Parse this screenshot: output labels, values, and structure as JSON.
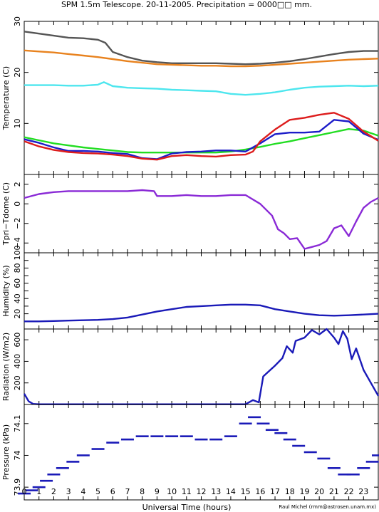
{
  "title": "SPM 1.5m Telescope. 20-11-2005. Precipitation = 0000□□ mm.",
  "xlabel": "Universal Time (hours)",
  "credit": "Raul Michel (rmm@astrosen.unam.mx)",
  "x_ticks": [
    "0",
    "1",
    "2",
    "3",
    "4",
    "5",
    "6",
    "7",
    "8",
    "9",
    "10",
    "11",
    "12",
    "13",
    "14",
    "15",
    "16",
    "17",
    "18",
    "19",
    "20",
    "21",
    "22",
    "23"
  ],
  "chart_data": [
    {
      "type": "line",
      "ylabel": "Temperature (C)",
      "xlim": [
        0,
        24
      ],
      "ylim": [
        0,
        30
      ],
      "yticks": [
        10,
        20,
        30
      ],
      "series": [
        {
          "color": "#555555",
          "x": [
            0,
            1,
            2,
            3,
            4,
            5,
            5.5,
            6,
            7,
            8,
            9,
            10,
            11,
            12,
            13,
            14,
            15,
            16,
            17,
            18,
            19,
            20,
            21,
            22,
            23,
            24
          ],
          "y": [
            28,
            27.6,
            27.2,
            26.8,
            26.7,
            26.4,
            25.8,
            24,
            23,
            22.3,
            22,
            21.8,
            21.8,
            21.8,
            21.8,
            21.7,
            21.6,
            21.7,
            21.9,
            22.2,
            22.6,
            23.1,
            23.6,
            24,
            24.2,
            24.2
          ]
        },
        {
          "color": "#e8821e",
          "x": [
            0,
            1,
            2,
            3,
            4,
            5,
            6,
            7,
            8,
            9,
            10,
            11,
            12,
            13,
            14,
            15,
            16,
            17,
            18,
            19,
            20,
            21,
            22,
            23,
            24
          ],
          "y": [
            24.3,
            24.1,
            23.9,
            23.6,
            23.3,
            23,
            22.6,
            22.2,
            21.9,
            21.6,
            21.5,
            21.4,
            21.3,
            21.3,
            21.2,
            21.2,
            21.3,
            21.5,
            21.7,
            21.9,
            22.1,
            22.3,
            22.5,
            22.6,
            22.7
          ]
        },
        {
          "color": "#4de6ee",
          "x": [
            0,
            1,
            2,
            3,
            4,
            5,
            5.4,
            6,
            7,
            8,
            9,
            10,
            11,
            12,
            13,
            14,
            15,
            16,
            17,
            18,
            19,
            20,
            21,
            22,
            23,
            24
          ],
          "y": [
            17.5,
            17.5,
            17.5,
            17.4,
            17.4,
            17.6,
            18.1,
            17.3,
            17,
            16.9,
            16.8,
            16.6,
            16.5,
            16.4,
            16.3,
            15.8,
            15.6,
            15.8,
            16.1,
            16.6,
            17,
            17.2,
            17.3,
            17.4,
            17.3,
            17.4
          ]
        },
        {
          "color": "#22dd22",
          "x": [
            0,
            1,
            2,
            3,
            4,
            5,
            6,
            7,
            8,
            9,
            10,
            11,
            12,
            13,
            14,
            15,
            16,
            17,
            18,
            19,
            20,
            21,
            22,
            23,
            24
          ],
          "y": [
            7.3,
            6.7,
            6.1,
            5.7,
            5.3,
            5,
            4.7,
            4.4,
            4.3,
            4.3,
            4.3,
            4.3,
            4.3,
            4.3,
            4.5,
            4.9,
            5.4,
            6,
            6.5,
            7.1,
            7.7,
            8.3,
            8.9,
            8.6,
            7.6
          ]
        },
        {
          "color": "#1c1cc9",
          "x": [
            0,
            1,
            2,
            3,
            4,
            5,
            6,
            7,
            8,
            9,
            10,
            11,
            12,
            13,
            14,
            15,
            16,
            17,
            18,
            19,
            20,
            21,
            22,
            23,
            24
          ],
          "y": [
            6.9,
            6.2,
            5.3,
            4.6,
            4.6,
            4.5,
            4.2,
            4,
            3.2,
            3,
            4.1,
            4.4,
            4.5,
            4.7,
            4.7,
            4.5,
            6.1,
            7.9,
            8.2,
            8.2,
            8.4,
            10.7,
            10.4,
            8,
            6.8
          ]
        },
        {
          "color": "#dd1c1c",
          "x": [
            0,
            1,
            2,
            3,
            4,
            5,
            6,
            7,
            8,
            9,
            10,
            11,
            12,
            13,
            14,
            15,
            15.5,
            16,
            17,
            18,
            19,
            20,
            21,
            22,
            23,
            24
          ],
          "y": [
            6.5,
            5.5,
            4.8,
            4.4,
            4.2,
            4.1,
            3.9,
            3.6,
            3.1,
            2.9,
            3.6,
            3.8,
            3.6,
            3.5,
            3.8,
            3.9,
            4.5,
            6.5,
            8.8,
            10.7,
            11.1,
            11.7,
            12.1,
            10.9,
            8.4,
            6.6
          ]
        }
      ]
    },
    {
      "type": "line",
      "ylabel": "Tpri−Tdome (C)",
      "xlim": [
        0,
        24
      ],
      "ylim": [
        -5,
        3
      ],
      "yticks": [
        -4,
        -2,
        0,
        2
      ],
      "tick_labels": [
        "−4",
        "−2",
        "0",
        "2"
      ],
      "series": [
        {
          "color": "#8a2ad6",
          "x": [
            0,
            1,
            2,
            3,
            4,
            5,
            6,
            7,
            8,
            8.8,
            9,
            10,
            11,
            12,
            13,
            14,
            15,
            16,
            16.8,
            17.2,
            17.6,
            18,
            18.5,
            19,
            19.5,
            20,
            20.5,
            21,
            21.5,
            22,
            22.5,
            23,
            23.5,
            24
          ],
          "y": [
            0.6,
            1,
            1.2,
            1.3,
            1.3,
            1.3,
            1.3,
            1.3,
            1.4,
            1.3,
            0.8,
            0.8,
            0.9,
            0.8,
            0.8,
            0.9,
            0.9,
            0,
            -1.2,
            -2.6,
            -3,
            -3.6,
            -3.5,
            -4.6,
            -4.4,
            -4.2,
            -3.8,
            -2.5,
            -2.2,
            -3.3,
            -1.8,
            -0.4,
            0.2,
            0.6
          ]
        }
      ]
    },
    {
      "type": "line",
      "ylabel": "Humidity (%)",
      "xlim": [
        0,
        24
      ],
      "ylim": [
        0,
        100
      ],
      "yticks": [
        10,
        20,
        30,
        40,
        50,
        60,
        70,
        80,
        90,
        100
      ],
      "tick_labels": [
        "",
        "20",
        "",
        "40",
        "",
        "60",
        "",
        "80",
        "",
        "100"
      ],
      "series": [
        {
          "color": "#1a1ab8",
          "x": [
            0,
            1,
            2,
            3,
            4,
            5,
            6,
            7,
            8,
            9,
            10,
            11,
            12,
            13,
            14,
            15,
            16,
            17,
            18,
            19,
            20,
            21,
            22,
            23,
            24
          ],
          "y": [
            10,
            10,
            10.5,
            11,
            11.5,
            12,
            13,
            15,
            19,
            23,
            26,
            29,
            30,
            31,
            32,
            32,
            31,
            26,
            23,
            20,
            18,
            17.5,
            18,
            19,
            20
          ]
        }
      ]
    },
    {
      "type": "line",
      "ylabel": "Radiation (W/m2)",
      "xlim": [
        0,
        24
      ],
      "ylim": [
        0,
        700
      ],
      "yticks": [
        200,
        400,
        600
      ],
      "series": [
        {
          "color": "#1a1ab8",
          "x": [
            0,
            0.3,
            0.6,
            1,
            5,
            10,
            15,
            15.5,
            15.9,
            16.2,
            17,
            17.5,
            17.8,
            18.2,
            18.4,
            19,
            19.5,
            20,
            20.5,
            21,
            21.3,
            21.6,
            21.9,
            22.2,
            22.5,
            23,
            23.5,
            24
          ],
          "y": [
            100,
            30,
            5,
            2,
            2,
            2,
            2,
            40,
            20,
            260,
            360,
            430,
            540,
            480,
            590,
            620,
            690,
            650,
            700,
            620,
            560,
            680,
            610,
            420,
            520,
            320,
            200,
            80
          ]
        }
      ]
    },
    {
      "type": "scatter",
      "ylabel": "Pressure (kPa)",
      "xlim": [
        0,
        24
      ],
      "ylim": [
        73.86,
        74.16
      ],
      "yticks": [
        73.9,
        74,
        74.1
      ],
      "series": [
        {
          "color": "#1a1ab8",
          "x": [
            0,
            0.5,
            1,
            1.5,
            2,
            2.6,
            3.3,
            4,
            5,
            6,
            7,
            8,
            9,
            10,
            11,
            12,
            13,
            14,
            15,
            15.6,
            16.2,
            16.8,
            17.4,
            18,
            18.6,
            19.4,
            20.3,
            21,
            21.7,
            22.3,
            23,
            23.6,
            24
          ],
          "y": [
            73.88,
            73.89,
            73.9,
            73.92,
            73.94,
            73.96,
            73.98,
            74.0,
            74.02,
            74.04,
            74.05,
            74.06,
            74.06,
            74.06,
            74.06,
            74.05,
            74.05,
            74.06,
            74.1,
            74.12,
            74.1,
            74.08,
            74.07,
            74.05,
            74.03,
            74.01,
            73.99,
            73.96,
            73.94,
            73.94,
            73.96,
            73.98,
            74.0
          ]
        }
      ]
    }
  ]
}
